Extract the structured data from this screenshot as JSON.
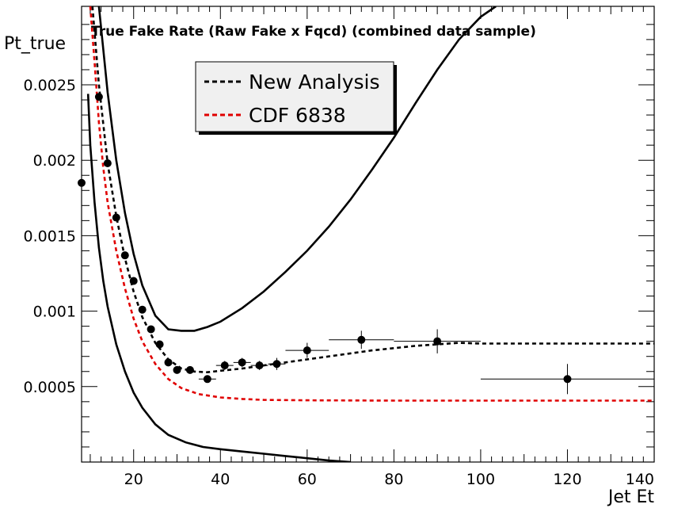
{
  "chart_data": {
    "type": "scatter",
    "title": "True Fake Rate (Raw Fake x Fqcd) (combined data sample)",
    "xlabel": "Jet Et",
    "ylabel": "Pt_true",
    "xlim": [
      8,
      140
    ],
    "ylim": [
      0,
      0.00302
    ],
    "xticks": [
      20,
      40,
      60,
      80,
      100,
      120,
      140
    ],
    "yticks": [
      0.0005,
      0.001,
      0.0015,
      0.002,
      0.0025
    ],
    "xtick_labels": [
      "20",
      "40",
      "60",
      "80",
      "100",
      "120",
      "140"
    ],
    "ytick_labels": [
      "0.0005",
      "0.001",
      "0.0015",
      "0.002",
      "0.0025"
    ],
    "legend": {
      "placement": "top-center",
      "entries": [
        {
          "label": "New Analysis",
          "color": "#000000",
          "style": "dashed"
        },
        {
          "label": "CDF 6838",
          "color": "#e00000",
          "style": "dashed"
        }
      ]
    },
    "points": {
      "color": "#000000",
      "x": [
        8,
        12,
        14,
        16,
        18,
        20,
        22,
        24,
        26,
        28,
        30,
        33,
        37,
        41,
        45,
        49,
        53,
        60,
        72.5,
        90,
        120
      ],
      "y": [
        0.00185,
        0.00242,
        0.00198,
        0.00162,
        0.00137,
        0.0012,
        0.00101,
        0.00088,
        0.00078,
        0.00066,
        0.00061,
        0.00061,
        0.00055,
        0.00064,
        0.00066,
        0.00064,
        0.00065,
        0.00074,
        0.00081,
        0.0008,
        0.00055
      ],
      "xerr": [
        0,
        0,
        0,
        0,
        0,
        0,
        0,
        0,
        0,
        0,
        0,
        0,
        2,
        2,
        2,
        2,
        2,
        5,
        7.5,
        10,
        20
      ],
      "yerr": [
        0,
        0,
        0,
        0,
        0,
        0,
        0,
        0,
        0,
        0,
        0,
        0,
        2e-05,
        3e-05,
        3e-05,
        3e-05,
        4e-05,
        5e-05,
        6e-05,
        8e-05,
        0.0001
      ]
    },
    "curves": [
      {
        "name": "New Analysis",
        "color": "#000000",
        "style": "dashed",
        "x": [
          10.5,
          12,
          14,
          16,
          18,
          20,
          22,
          25,
          28,
          31,
          34,
          37,
          40,
          45,
          50,
          55,
          60,
          65,
          70,
          75,
          80,
          85,
          90,
          95,
          100,
          110,
          120,
          130,
          140
        ],
        "y": [
          0.00302,
          0.0025,
          0.00198,
          0.00163,
          0.00135,
          0.00113,
          0.00096,
          0.00079,
          0.00068,
          0.00062,
          0.0006,
          0.000595,
          0.000605,
          0.00062,
          0.00064,
          0.00066,
          0.00068,
          0.0007,
          0.00072,
          0.00074,
          0.000755,
          0.00077,
          0.00078,
          0.00079,
          0.000785,
          0.000785,
          0.000785,
          0.000785,
          0.000785
        ]
      },
      {
        "name": "CDF 6838",
        "color": "#e00000",
        "style": "dashed",
        "x": [
          10,
          11,
          12,
          13,
          14,
          16,
          18,
          20,
          22,
          25,
          28,
          31,
          35,
          40,
          45,
          50,
          60,
          70,
          80,
          100,
          120,
          140
        ],
        "y": [
          0.00302,
          0.00265,
          0.00225,
          0.00195,
          0.00172,
          0.0014,
          0.00115,
          0.00095,
          0.0008,
          0.00065,
          0.00055,
          0.00049,
          0.00045,
          0.000428,
          0.000418,
          0.000412,
          0.000409,
          0.000408,
          0.000407,
          0.000407,
          0.000407,
          0.000407
        ]
      },
      {
        "name": "",
        "color": "#000000",
        "style": "solid",
        "x": [
          12,
          14,
          16,
          18,
          20,
          22,
          25,
          28,
          31,
          34,
          37,
          40,
          45,
          50,
          55,
          60,
          65,
          70,
          75,
          80,
          85,
          90,
          95,
          100,
          103.5
        ],
        "y": [
          0.00302,
          0.00245,
          0.002,
          0.00165,
          0.00138,
          0.00117,
          0.00097,
          0.00088,
          0.00087,
          0.00087,
          0.000895,
          0.00093,
          0.00102,
          0.00113,
          0.00126,
          0.0014,
          0.00156,
          0.00174,
          0.00194,
          0.00215,
          0.00238,
          0.0026,
          0.0028,
          0.00295,
          0.00302
        ]
      },
      {
        "name": "",
        "color": "#000000",
        "style": "solid",
        "x": [
          9.5,
          10,
          11,
          12,
          13,
          14,
          16,
          18,
          20,
          22,
          25,
          28,
          32,
          36,
          40,
          45,
          50,
          55,
          60,
          65,
          70
        ],
        "y": [
          0.00244,
          0.0021,
          0.00172,
          0.00142,
          0.0012,
          0.00103,
          0.00078,
          0.0006,
          0.00046,
          0.00036,
          0.00025,
          0.00018,
          0.00013,
          0.0001,
          8.5e-05,
          7e-05,
          5.5e-05,
          4e-05,
          2.5e-05,
          1e-05,
          0.0
        ]
      }
    ]
  }
}
